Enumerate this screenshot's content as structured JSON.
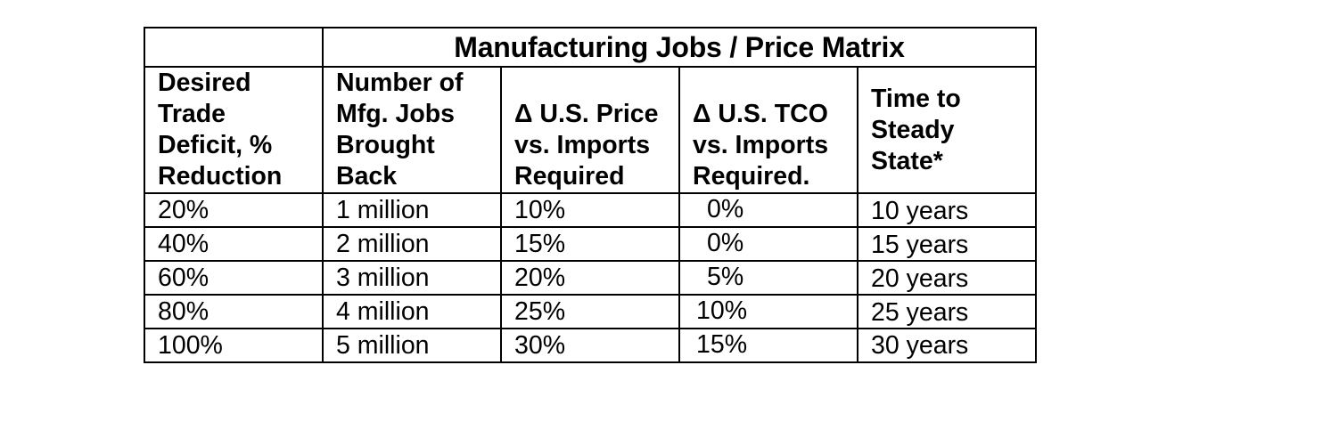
{
  "table": {
    "title": "Manufacturing Jobs / Price Matrix",
    "headers": [
      [
        "Desired",
        "Trade",
        "Deficit, %",
        "Reduction"
      ],
      [
        "Number of",
        "Mfg. Jobs",
        "Brought",
        "Back"
      ],
      [
        "Δ U.S. Price",
        "vs. Imports",
        "Required"
      ],
      [
        "Δ U.S. TCO",
        "vs. Imports",
        "Required."
      ],
      [
        "Time to",
        "Steady",
        "State*"
      ]
    ],
    "rows": [
      [
        "20%",
        "1 million",
        "10%",
        "0%",
        "10 years"
      ],
      [
        "40%",
        "2 million",
        "15%",
        "0%",
        "15 years"
      ],
      [
        "60%",
        "3 million",
        "20%",
        "5%",
        "20 years"
      ],
      [
        "80%",
        "4 million",
        "25%",
        "10%",
        "25 years"
      ],
      [
        "100%",
        "5 million",
        "30%",
        "15%",
        "30 years"
      ]
    ]
  }
}
